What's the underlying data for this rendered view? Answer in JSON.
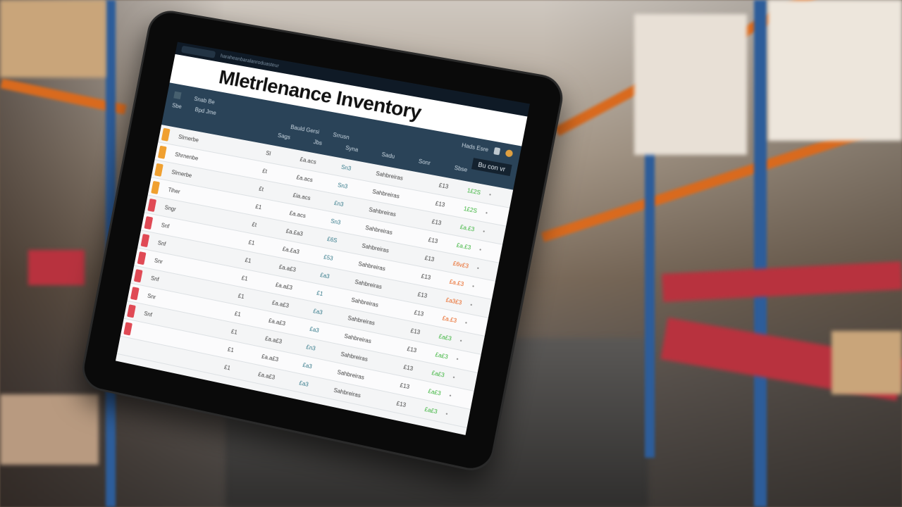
{
  "app": {
    "title": "Mletrlenance Inventory",
    "top_strip": "haraheanbaralanroduasteur",
    "user_label": "Hads Esre",
    "action_button": "Bu con vr"
  },
  "nav": {
    "row1": [
      "Snab Be"
    ],
    "row2": [
      "Sbe",
      "Bpd Jme",
      "Bauld Gersi",
      "Srrusn"
    ],
    "row3": [
      "Sags",
      "Jbs",
      "Syna",
      "Sadu",
      "Sonr",
      "Sbse"
    ]
  },
  "colors": {
    "warning": "#f0a030",
    "critical": "#e04a55",
    "ok": "#3cb43c",
    "alert": "#e8601c",
    "header": "#2a4358"
  },
  "rows": [
    {
      "level": "warning",
      "name": "Slrnerbe",
      "qty": "Sl",
      "code": "£a.acs",
      "code2": "Sn3",
      "loc": "Sahbreiras",
      "code3": "£13",
      "status": "1£2S",
      "status_color": "ok"
    },
    {
      "level": "warning",
      "name": "Shrnenbe",
      "qty": "£t",
      "code": "£a.acs",
      "code2": "Sn3",
      "loc": "Sahbreiras",
      "code3": "£13",
      "status": "1£2S",
      "status_color": "ok"
    },
    {
      "level": "warning",
      "name": "Slrnerbe",
      "qty": "£t",
      "code": "£ia.acs",
      "code2": "£n3",
      "loc": "Sahbreiras",
      "code3": "£13",
      "status": "£a.£3",
      "status_color": "ok"
    },
    {
      "level": "warning",
      "name": "Tiher",
      "qty": "£1",
      "code": "£a.acs",
      "code2": "Sn3",
      "loc": "Sahbreiras",
      "code3": "£13",
      "status": "£a.£3",
      "status_color": "ok"
    },
    {
      "level": "critical",
      "name": "Sngr",
      "qty": "£t",
      "code": "£a.£a3",
      "code2": "£6S",
      "loc": "Sahbreiras",
      "code3": "£13",
      "status": "£6v£3",
      "status_color": "alert"
    },
    {
      "level": "critical",
      "name": "Snf",
      "qty": "£1",
      "code": "£a.£a3",
      "code2": "£53",
      "loc": "Sahbreiras",
      "code3": "£13",
      "status": "£a.£3",
      "status_color": "alert"
    },
    {
      "level": "critical",
      "name": "Snf",
      "qty": "£1",
      "code": "£a.a£3",
      "code2": "£a3",
      "loc": "Sahbreiras",
      "code3": "£13",
      "status": "£a3£3",
      "status_color": "alert"
    },
    {
      "level": "critical",
      "name": "Snr",
      "qty": "£1",
      "code": "£a.a£3",
      "code2": "£1",
      "loc": "Sahbreiras",
      "code3": "£13",
      "status": "£a.£3",
      "status_color": "alert"
    },
    {
      "level": "critical",
      "name": "Snf",
      "qty": "£1",
      "code": "£a.a£3",
      "code2": "£a3",
      "loc": "Sahbreiras",
      "code3": "£13",
      "status": "£a£3",
      "status_color": "ok"
    },
    {
      "level": "critical",
      "name": "Snr",
      "qty": "£1",
      "code": "£a.a£3",
      "code2": "£a3",
      "loc": "Sahbreiras",
      "code3": "£13",
      "status": "£a£3",
      "status_color": "ok"
    },
    {
      "level": "critical",
      "name": "Snf",
      "qty": "£1",
      "code": "£a.a£3",
      "code2": "£n3",
      "loc": "Sahbreiras",
      "code3": "£13",
      "status": "£a£3",
      "status_color": "ok"
    },
    {
      "level": "critical",
      "name": "",
      "qty": "£1",
      "code": "£a.a£3",
      "code2": "£a3",
      "loc": "Sahbreiras",
      "code3": "£13",
      "status": "£a£3",
      "status_color": "ok"
    },
    {
      "level": "",
      "name": "",
      "qty": "£1",
      "code": "£a.a£3",
      "code2": "£a3",
      "loc": "Sahbreiras",
      "code3": "£13",
      "status": "£a£3",
      "status_color": "ok"
    }
  ]
}
